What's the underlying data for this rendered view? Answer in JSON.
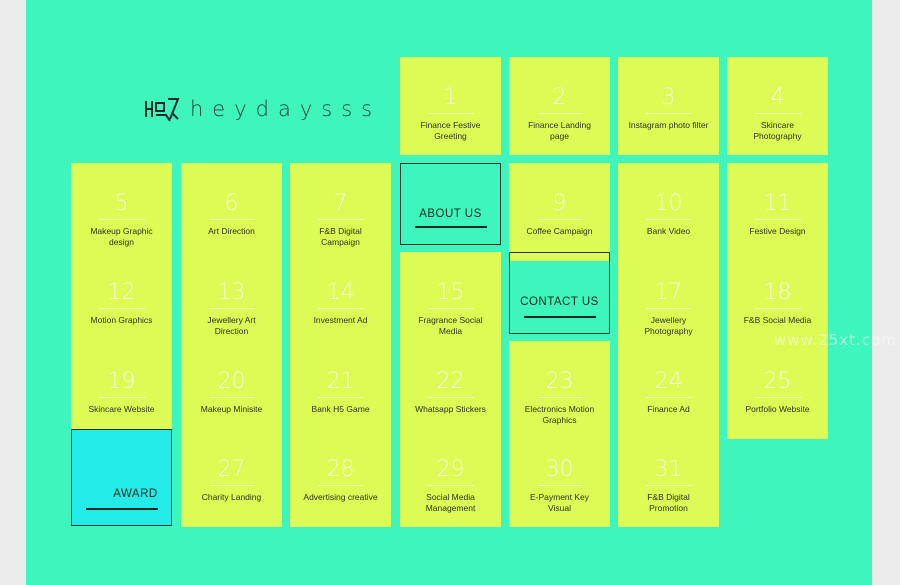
{
  "brand": {
    "name": "heydaysss"
  },
  "projects": [
    {
      "num": "1",
      "label": "Finance Festive Greeting"
    },
    {
      "num": "2",
      "label": "Finance Landing page"
    },
    {
      "num": "3",
      "label": "Instagram photo filter"
    },
    {
      "num": "4",
      "label": "Skincare Photography"
    },
    {
      "num": "5",
      "label": "Makeup Graphic design"
    },
    {
      "num": "6",
      "label": "Art Direction"
    },
    {
      "num": "7",
      "label": "F&B Digital Campaign"
    },
    {
      "num": "9",
      "label": "Coffee Campaign"
    },
    {
      "num": "10",
      "label": "Bank Video"
    },
    {
      "num": "11",
      "label": "Festive Design"
    },
    {
      "num": "12",
      "label": "Motion Graphics"
    },
    {
      "num": "13",
      "label": "Jewellery Art Direction"
    },
    {
      "num": "14",
      "label": "Investment Ad"
    },
    {
      "num": "15",
      "label": "Fragrance Social Media"
    },
    {
      "num": "17",
      "label": "Jewellery Photography"
    },
    {
      "num": "18",
      "label": "F&B Social Media"
    },
    {
      "num": "19",
      "label": "Skincare Website"
    },
    {
      "num": "20",
      "label": "Makeup Minisite"
    },
    {
      "num": "21",
      "label": "Bank H5 Game"
    },
    {
      "num": "22",
      "label": "Whatsapp Stickers"
    },
    {
      "num": "23",
      "label": "Electronics Motion Graphics"
    },
    {
      "num": "24",
      "label": "Finance Ad"
    },
    {
      "num": "25",
      "label": "Portfolio Website"
    },
    {
      "num": "27",
      "label": "Charity Landing"
    },
    {
      "num": "28",
      "label": "Advertising creative"
    },
    {
      "num": "29",
      "label": "Social Media Management"
    },
    {
      "num": "30",
      "label": "E-Payment Key Visual"
    },
    {
      "num": "31",
      "label": "F&B Digital Promotion"
    }
  ],
  "links": {
    "about": "ABOUT US",
    "contact": "CONTACT US",
    "award": "AWARD"
  },
  "watermark": "www.25xt.com",
  "colors": {
    "background": "#3ef5bd",
    "tile": "#dcfb54",
    "award": "#22ebe8"
  }
}
